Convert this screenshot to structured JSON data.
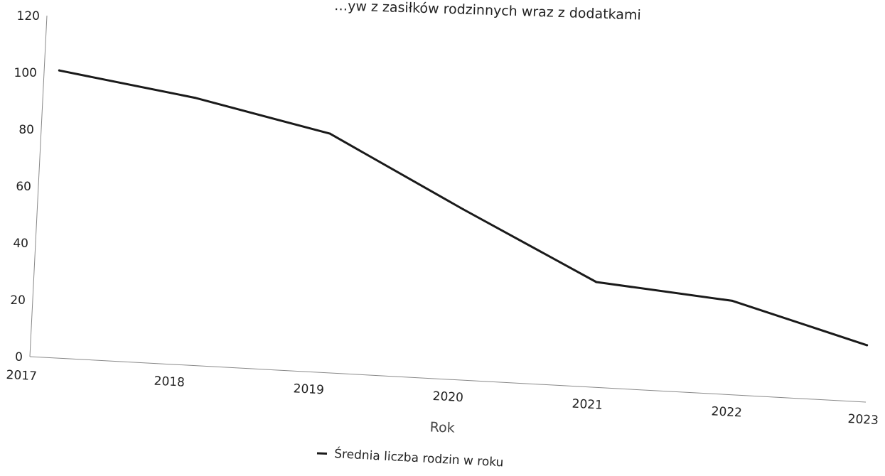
{
  "chart_data": {
    "type": "line",
    "title": "…yw z zasiłków rodzinnych wraz z dodatkami",
    "xlabel": "Rok",
    "ylabel": "",
    "x": [
      "2017",
      "2018",
      "2019",
      "2020",
      "2021",
      "2022",
      "2023"
    ],
    "ylim": [
      0,
      120
    ],
    "yticks": [
      0,
      20,
      40,
      60,
      80,
      100,
      120
    ],
    "series": [
      {
        "name": "Średnia liczba rodzin w roku",
        "values": [
          101,
          94,
          84,
          60,
          37,
          33,
          20
        ]
      }
    ],
    "legend": "bottom-center",
    "grid": false,
    "colors": {
      "line": "#1a1a1a",
      "axis": "#888888"
    }
  }
}
